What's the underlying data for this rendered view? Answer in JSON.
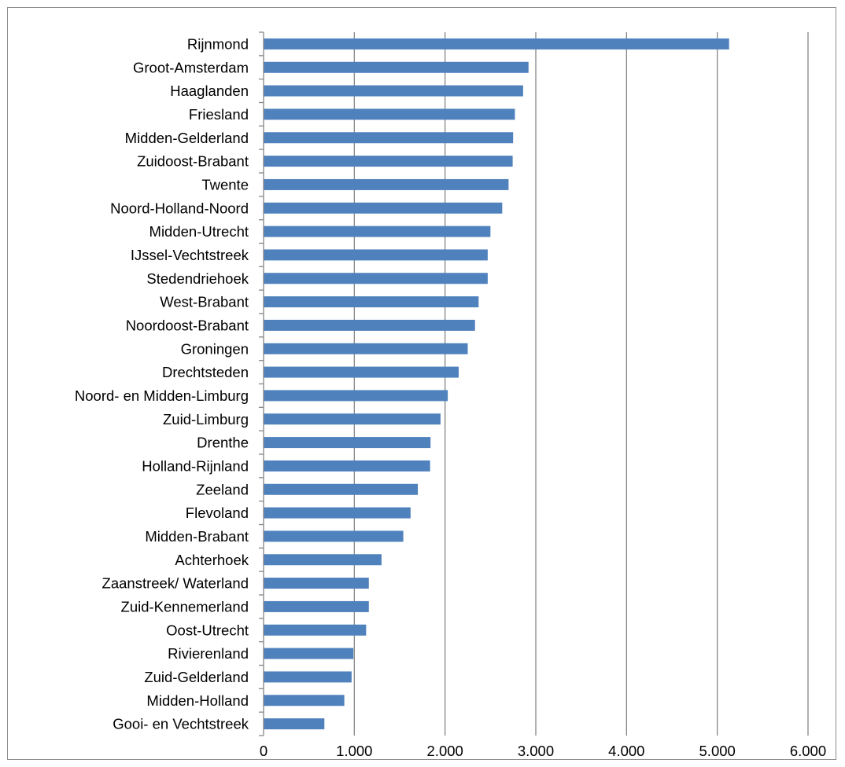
{
  "chart_data": {
    "type": "bar",
    "orientation": "horizontal",
    "title": "",
    "xlabel": "",
    "ylabel": "",
    "xlim": [
      0,
      6000
    ],
    "grid": true,
    "legend": "none",
    "bar_color": "#4f81bd",
    "grid_color": "#868686",
    "categories": [
      "Rijnmond",
      "Groot-Amsterdam",
      "Haaglanden",
      "Friesland",
      "Midden-Gelderland",
      "Zuidoost-Brabant",
      "Twente",
      "Noord-Holland-Noord",
      "Midden-Utrecht",
      "IJssel-Vechtstreek",
      "Stedendriehoek",
      "West-Brabant",
      "Noordoost-Brabant",
      "Groningen",
      "Drechtsteden",
      "Noord- en Midden-Limburg",
      "Zuid-Limburg",
      "Drenthe",
      "Holland-Rijnland",
      "Zeeland",
      "Flevoland",
      "Midden-Brabant",
      "Achterhoek",
      "Zaanstreek/ Waterland",
      "Zuid-Kennemerland",
      "Oost-Utrecht",
      "Rivierenland",
      "Zuid-Gelderland",
      "Midden-Holland",
      "Gooi- en Vechtstreek"
    ],
    "values": [
      5130,
      2920,
      2860,
      2770,
      2750,
      2745,
      2700,
      2630,
      2500,
      2470,
      2470,
      2370,
      2330,
      2250,
      2150,
      2030,
      1950,
      1840,
      1835,
      1700,
      1620,
      1540,
      1300,
      1160,
      1160,
      1130,
      990,
      970,
      890,
      670
    ],
    "ticks": [
      {
        "value": 0,
        "label": "0"
      },
      {
        "value": 1000,
        "label": "1.000"
      },
      {
        "value": 2000,
        "label": "2.000"
      },
      {
        "value": 3000,
        "label": "3.000"
      },
      {
        "value": 4000,
        "label": "4.000"
      },
      {
        "value": 5000,
        "label": "5.000"
      },
      {
        "value": 6000,
        "label": "6.000"
      }
    ]
  }
}
